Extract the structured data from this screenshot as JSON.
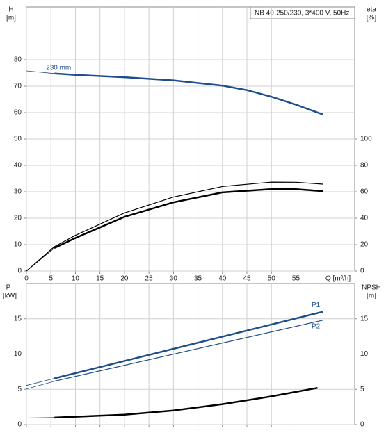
{
  "chart_data": [
    {
      "type": "line",
      "title": "NB 40-250/230, 3*400 V, 50Hz",
      "y_label": "H",
      "y_unit": "[m]",
      "y2_label": "eta",
      "y2_unit": "[%]",
      "x_label": "Q [m³/h]",
      "xlim": [
        0,
        67
      ],
      "xticks": [
        0,
        5,
        10,
        15,
        20,
        25,
        30,
        35,
        40,
        45,
        50,
        55
      ],
      "ylim": [
        0,
        100
      ],
      "yticks": [
        0,
        10,
        20,
        30,
        40,
        50,
        60,
        70,
        80
      ],
      "y2lim": [
        0,
        200
      ],
      "y2ticks": [
        0,
        20,
        40,
        60,
        80,
        100
      ],
      "grid": true,
      "series": [
        {
          "name": "230 mm",
          "color": "#1f4e8c",
          "axis": "y",
          "weight": "thick",
          "start_thin": true,
          "x": [
            0,
            5.7,
            10,
            20,
            30,
            40,
            45,
            50,
            55,
            60.5
          ],
          "values": [
            75.8,
            74.8,
            74.3,
            73.4,
            72.2,
            70.2,
            68.5,
            66,
            63,
            59.3
          ]
        },
        {
          "color": "#000000",
          "axis": "y2",
          "weight": "thin",
          "start_thin": false,
          "x": [
            0,
            5.7,
            10,
            20,
            30,
            40,
            50,
            55,
            60.5
          ],
          "values": [
            0,
            18.4,
            27,
            44,
            56,
            64,
            67.3,
            67.2,
            65.8
          ]
        },
        {
          "color": "#000000",
          "axis": "y2",
          "weight": "thick",
          "start_thin": true,
          "x": [
            0,
            5.7,
            10,
            20,
            30,
            40,
            50,
            55,
            60.5
          ],
          "values": [
            0,
            17.4,
            25,
            41,
            52,
            59.5,
            62,
            62,
            60.5
          ]
        }
      ]
    },
    {
      "type": "line",
      "y_label": "P",
      "y_unit": "[kW]",
      "y2_label": "NPSH",
      "y2_unit": "[m]",
      "xlim": [
        0,
        67
      ],
      "ylim": [
        0,
        20
      ],
      "yticks": [
        0,
        5,
        10,
        15
      ],
      "y2lim": [
        0,
        20
      ],
      "y2ticks": [
        0,
        5,
        10,
        15
      ],
      "grid": true,
      "series": [
        {
          "name": "P1",
          "color": "#1f4e8c",
          "axis": "y",
          "weight": "thick",
          "start_thin": true,
          "x": [
            0,
            5.7,
            60.5
          ],
          "values": [
            5.55,
            6.55,
            16.0
          ]
        },
        {
          "name": "P2",
          "color": "#1f4e8c",
          "axis": "y",
          "weight": "thin",
          "start_thin": true,
          "x": [
            0,
            5.7,
            60.5
          ],
          "values": [
            5.05,
            6.15,
            14.8
          ]
        },
        {
          "color": "#000000",
          "axis": "y2",
          "weight": "thick",
          "start_thin": true,
          "x": [
            0,
            5.7,
            20,
            30,
            40,
            50,
            59.4
          ],
          "values": [
            0.95,
            1.0,
            1.4,
            2.0,
            2.9,
            4.0,
            5.2
          ]
        }
      ]
    }
  ]
}
